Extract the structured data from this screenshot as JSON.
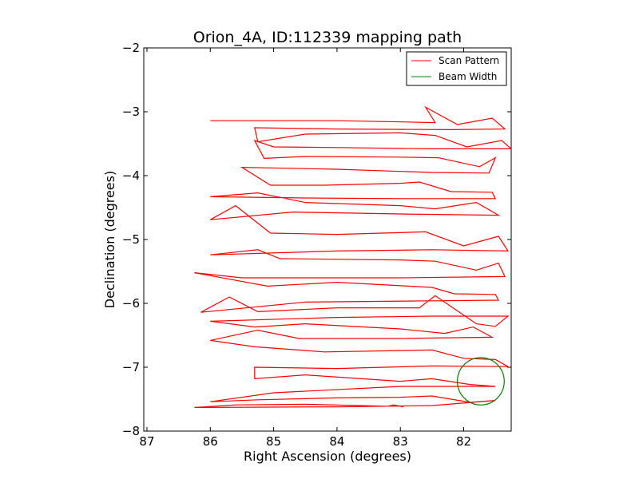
{
  "chart_data": {
    "type": "line",
    "title": "Orion_4A, ID:112339 mapping path",
    "xlabel": "Right Ascension (degrees)",
    "ylabel": "Declination (degrees)",
    "xlim": [
      87.05,
      81.25
    ],
    "ylim": [
      -8,
      -2
    ],
    "x_ticks": [
      87,
      86,
      85,
      84,
      83,
      82
    ],
    "y_ticks": [
      -2,
      -3,
      -4,
      -5,
      -6,
      -7,
      -8
    ],
    "x_tick_labels": [
      "87",
      "86",
      "85",
      "84",
      "83",
      "82"
    ],
    "y_tick_labels": [
      "−2",
      "−3",
      "−4",
      "−5",
      "−6",
      "−7",
      "−8"
    ],
    "grid": false,
    "legend": {
      "position": "top-right",
      "entries": [
        "Scan Pattern",
        "Beam Width"
      ]
    },
    "series": [
      {
        "name": "Scan Pattern",
        "color": "#ff0000",
        "style": "line",
        "points": [
          [
            86.0,
            -3.14
          ],
          [
            84.0,
            -3.14
          ],
          [
            82.9,
            -3.16
          ],
          [
            82.45,
            -3.17
          ],
          [
            82.6,
            -2.93
          ],
          [
            82.1,
            -3.2
          ],
          [
            81.55,
            -3.1
          ],
          [
            81.35,
            -3.27
          ],
          [
            82.2,
            -3.28
          ],
          [
            84.0,
            -3.27
          ],
          [
            85.3,
            -3.25
          ],
          [
            85.25,
            -3.47
          ],
          [
            84.5,
            -3.35
          ],
          [
            83.0,
            -3.33
          ],
          [
            82.45,
            -3.37
          ],
          [
            81.95,
            -3.55
          ],
          [
            81.4,
            -3.45
          ],
          [
            81.25,
            -3.58
          ],
          [
            82.5,
            -3.58
          ],
          [
            84.0,
            -3.56
          ],
          [
            85.0,
            -3.55
          ],
          [
            85.3,
            -3.45
          ],
          [
            85.15,
            -3.73
          ],
          [
            84.5,
            -3.7
          ],
          [
            83.0,
            -3.71
          ],
          [
            82.4,
            -3.72
          ],
          [
            81.75,
            -3.86
          ],
          [
            81.5,
            -3.72
          ],
          [
            81.6,
            -3.96
          ],
          [
            82.5,
            -3.95
          ],
          [
            84.0,
            -3.9
          ],
          [
            85.5,
            -3.87
          ],
          [
            85.05,
            -4.15
          ],
          [
            84.2,
            -4.15
          ],
          [
            83.0,
            -4.12
          ],
          [
            82.7,
            -4.1
          ],
          [
            82.2,
            -4.25
          ],
          [
            81.55,
            -4.26
          ],
          [
            81.5,
            -4.36
          ],
          [
            83.0,
            -4.36
          ],
          [
            84.5,
            -4.35
          ],
          [
            86.0,
            -4.33
          ],
          [
            85.25,
            -4.27
          ],
          [
            84.5,
            -4.42
          ],
          [
            83.0,
            -4.47
          ],
          [
            82.45,
            -4.52
          ],
          [
            81.8,
            -4.42
          ],
          [
            81.45,
            -4.62
          ],
          [
            83.0,
            -4.6
          ],
          [
            84.7,
            -4.57
          ],
          [
            86.0,
            -4.69
          ],
          [
            85.6,
            -4.47
          ],
          [
            85.05,
            -4.9
          ],
          [
            84.0,
            -4.92
          ],
          [
            82.6,
            -4.88
          ],
          [
            82.0,
            -5.1
          ],
          [
            81.45,
            -4.95
          ],
          [
            81.3,
            -5.18
          ],
          [
            82.5,
            -5.16
          ],
          [
            84.0,
            -5.18
          ],
          [
            86.0,
            -5.24
          ],
          [
            85.25,
            -5.16
          ],
          [
            84.9,
            -5.3
          ],
          [
            83.0,
            -5.32
          ],
          [
            82.45,
            -5.34
          ],
          [
            81.8,
            -5.48
          ],
          [
            81.45,
            -5.37
          ],
          [
            81.35,
            -5.58
          ],
          [
            83.0,
            -5.6
          ],
          [
            85.5,
            -5.6
          ],
          [
            86.25,
            -5.52
          ],
          [
            85.1,
            -5.73
          ],
          [
            84.0,
            -5.67
          ],
          [
            82.5,
            -5.75
          ],
          [
            82.15,
            -5.85
          ],
          [
            81.5,
            -5.86
          ],
          [
            81.45,
            -5.95
          ],
          [
            82.5,
            -5.96
          ],
          [
            84.5,
            -5.98
          ],
          [
            86.15,
            -6.14
          ],
          [
            85.7,
            -5.9
          ],
          [
            85.25,
            -6.13
          ],
          [
            84.0,
            -6.07
          ],
          [
            82.7,
            -6.07
          ],
          [
            82.45,
            -5.88
          ],
          [
            81.8,
            -6.32
          ],
          [
            81.5,
            -6.36
          ],
          [
            81.3,
            -6.2
          ],
          [
            82.5,
            -6.2
          ],
          [
            84.0,
            -6.22
          ],
          [
            86.0,
            -6.28
          ],
          [
            85.3,
            -6.37
          ],
          [
            84.5,
            -6.32
          ],
          [
            83.0,
            -6.4
          ],
          [
            82.3,
            -6.47
          ],
          [
            81.85,
            -6.37
          ],
          [
            81.55,
            -6.53
          ],
          [
            83.0,
            -6.55
          ],
          [
            84.6,
            -6.55
          ],
          [
            85.25,
            -6.42
          ],
          [
            86.0,
            -6.58
          ],
          [
            85.3,
            -6.68
          ],
          [
            84.2,
            -6.76
          ],
          [
            82.5,
            -6.73
          ],
          [
            82.0,
            -6.86
          ],
          [
            81.5,
            -6.88
          ],
          [
            81.3,
            -6.99
          ],
          [
            82.5,
            -6.98
          ],
          [
            84.0,
            -7.02
          ],
          [
            85.3,
            -7.0
          ],
          [
            85.3,
            -7.18
          ],
          [
            84.5,
            -7.12
          ],
          [
            83.0,
            -7.22
          ],
          [
            82.5,
            -7.18
          ],
          [
            81.9,
            -7.27
          ],
          [
            81.5,
            -7.3
          ],
          [
            83.0,
            -7.3
          ],
          [
            85.0,
            -7.4
          ],
          [
            86.0,
            -7.54
          ],
          [
            85.25,
            -7.51
          ],
          [
            84.0,
            -7.48
          ],
          [
            83.0,
            -7.47
          ],
          [
            82.5,
            -7.45
          ],
          [
            81.9,
            -7.55
          ],
          [
            81.5,
            -7.52
          ],
          [
            82.5,
            -7.6
          ],
          [
            84.0,
            -7.62
          ],
          [
            86.25,
            -7.63
          ],
          [
            85.6,
            -7.59
          ],
          [
            84.5,
            -7.58
          ],
          [
            83.2,
            -7.61
          ],
          [
            83.1,
            -7.59
          ],
          [
            82.95,
            -7.62
          ]
        ]
      },
      {
        "name": "Beam Width",
        "color": "#008000",
        "style": "circle",
        "center": [
          81.73,
          -7.22
        ],
        "radius_deg": 0.37
      }
    ]
  }
}
